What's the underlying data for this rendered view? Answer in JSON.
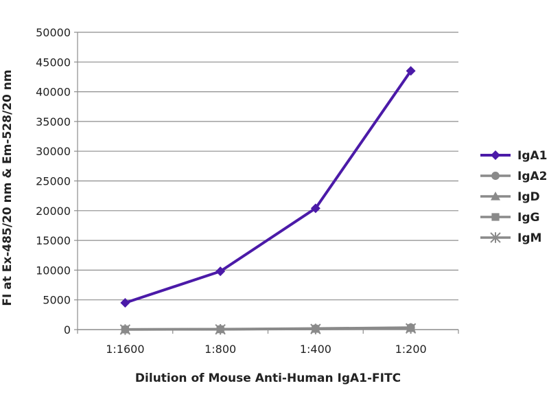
{
  "chart_data": {
    "type": "line",
    "title": "",
    "xlabel": "Dilution of Mouse Anti-Human IgA1-FITC",
    "ylabel": "FI at Ex-485/20 nm & Em-528/20 nm",
    "categories": [
      "1:1600",
      "1:800",
      "1:400",
      "1:200"
    ],
    "ylim": [
      0,
      50000
    ],
    "yticks": [
      0,
      5000,
      10000,
      15000,
      20000,
      25000,
      30000,
      35000,
      40000,
      45000,
      50000
    ],
    "grid": true,
    "legend_position": "right",
    "series": [
      {
        "name": "IgA1",
        "values": [
          4500,
          9800,
          20400,
          43500
        ],
        "color": "#4b1aa8",
        "marker": "diamond"
      },
      {
        "name": "IgA2",
        "values": [
          50,
          80,
          200,
          350
        ],
        "color": "#8a8a8a",
        "marker": "circle"
      },
      {
        "name": "IgD",
        "values": [
          30,
          60,
          150,
          300
        ],
        "color": "#8a8a8a",
        "marker": "triangle"
      },
      {
        "name": "IgG",
        "values": [
          20,
          50,
          120,
          250
        ],
        "color": "#8a8a8a",
        "marker": "square"
      },
      {
        "name": "IgM",
        "values": [
          10,
          40,
          100,
          200
        ],
        "color": "#8a8a8a",
        "marker": "star"
      }
    ]
  }
}
